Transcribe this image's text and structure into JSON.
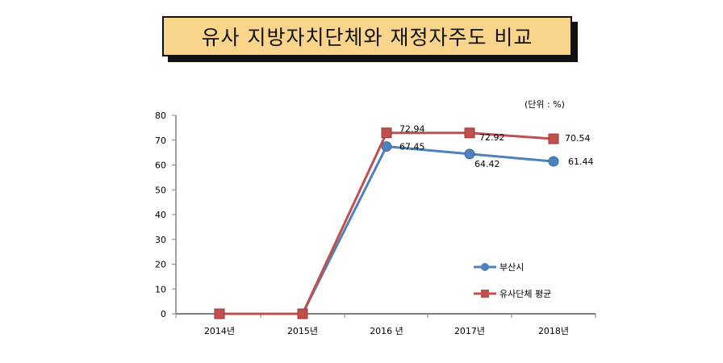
{
  "title": "유사 지방자치단체와 재정자주도 비교",
  "unit_label": "(단위 : %)",
  "colors": {
    "title_bg": "#f8d58a",
    "busan": "#4f81bd",
    "similar_avg": "#c0504d",
    "axis": "#808080"
  },
  "chart_data": {
    "type": "line",
    "categories": [
      "2014년",
      "2015년",
      "2016 년",
      "2017년",
      "2018년"
    ],
    "ylim": [
      0,
      80
    ],
    "yticks": [
      "0",
      "10",
      "20",
      "30",
      "40",
      "50",
      "60",
      "70",
      "80"
    ],
    "grid": false,
    "legend_position": "right",
    "series": [
      {
        "name": "부산시",
        "values": [
          0,
          0,
          67.45,
          64.42,
          61.44
        ],
        "labels": [
          "",
          "",
          "67.45",
          "64.42",
          "61.44"
        ]
      },
      {
        "name": "유사단체 평균",
        "values": [
          0,
          0,
          72.94,
          72.92,
          70.54
        ],
        "labels": [
          "",
          "",
          "72.94",
          "72.92",
          "70.54"
        ]
      }
    ]
  }
}
